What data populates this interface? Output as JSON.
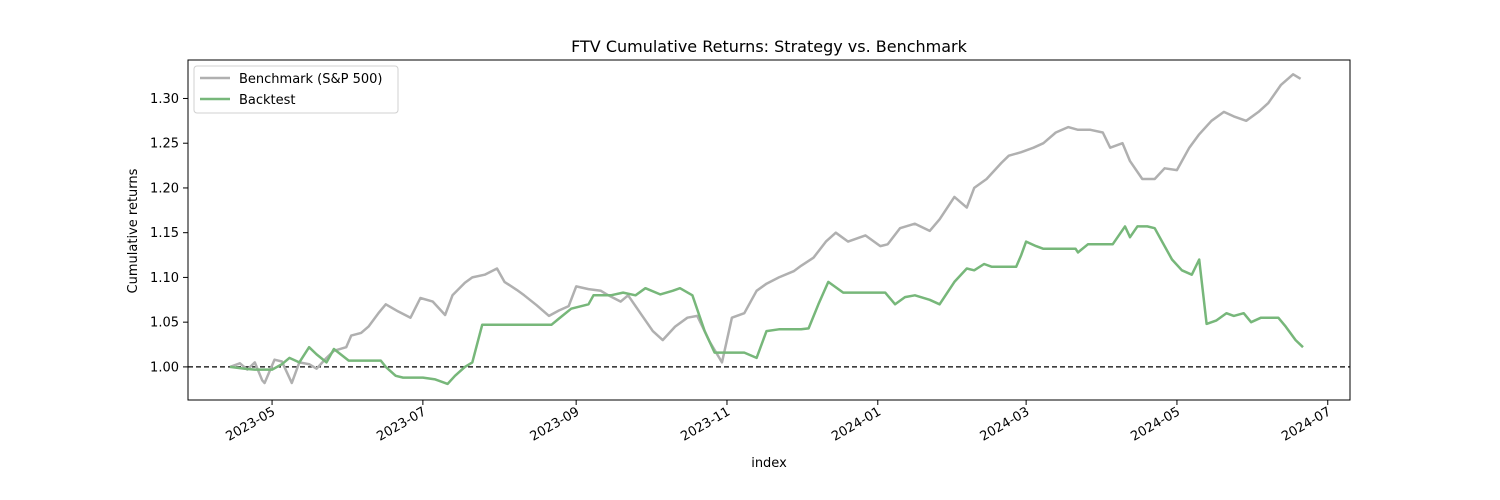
{
  "chart_data": {
    "type": "line",
    "title": "FTV Cumulative Returns: Strategy vs. Benchmark",
    "xlabel": "index",
    "ylabel": "Cumulative returns",
    "x_ticks": [
      "2023-05-01",
      "2023-07-01",
      "2023-09-01",
      "2023-11-01",
      "2024-01-01",
      "2024-03-01",
      "2024-05-01",
      "2024-07-01"
    ],
    "x_tick_labels": [
      "2023-05",
      "2023-07",
      "2023-09",
      "2023-11",
      "2024-01",
      "2024-03",
      "2024-05",
      "2024-07"
    ],
    "y_ticks": [
      1.0,
      1.05,
      1.1,
      1.15,
      1.2,
      1.25,
      1.3
    ],
    "y_tick_labels": [
      "1.00",
      "1.05",
      "1.10",
      "1.15",
      "1.20",
      "1.25",
      "1.30"
    ],
    "xlim": [
      "2023-03-28",
      "2024-07-10"
    ],
    "ylim": [
      0.963,
      1.343
    ],
    "legend_position": "upper-left",
    "reference_line": {
      "y": 1.0,
      "style": "dashed",
      "color": "#000000"
    },
    "series": [
      {
        "name": "Benchmark (S&P 500)",
        "color": "#b0b0b0",
        "points": [
          [
            "2023-04-14",
            1.0
          ],
          [
            "2023-04-18",
            1.004
          ],
          [
            "2023-04-21",
            0.997
          ],
          [
            "2023-04-24",
            1.005
          ],
          [
            "2023-04-27",
            0.985
          ],
          [
            "2023-04-28",
            0.982
          ],
          [
            "2023-05-02",
            1.008
          ],
          [
            "2023-05-05",
            1.006
          ],
          [
            "2023-05-09",
            0.982
          ],
          [
            "2023-05-12",
            1.005
          ],
          [
            "2023-05-16",
            1.003
          ],
          [
            "2023-05-19",
            0.998
          ],
          [
            "2023-05-23",
            1.01
          ],
          [
            "2023-05-26",
            1.018
          ],
          [
            "2023-05-31",
            1.022
          ],
          [
            "2023-06-02",
            1.035
          ],
          [
            "2023-06-06",
            1.038
          ],
          [
            "2023-06-09",
            1.045
          ],
          [
            "2023-06-13",
            1.06
          ],
          [
            "2023-06-16",
            1.07
          ],
          [
            "2023-06-21",
            1.062
          ],
          [
            "2023-06-26",
            1.055
          ],
          [
            "2023-06-30",
            1.077
          ],
          [
            "2023-07-05",
            1.073
          ],
          [
            "2023-07-10",
            1.058
          ],
          [
            "2023-07-13",
            1.08
          ],
          [
            "2023-07-18",
            1.094
          ],
          [
            "2023-07-21",
            1.1
          ],
          [
            "2023-07-26",
            1.103
          ],
          [
            "2023-07-31",
            1.11
          ],
          [
            "2023-08-03",
            1.095
          ],
          [
            "2023-08-08",
            1.086
          ],
          [
            "2023-08-11",
            1.08
          ],
          [
            "2023-08-16",
            1.069
          ],
          [
            "2023-08-21",
            1.057
          ],
          [
            "2023-08-25",
            1.063
          ],
          [
            "2023-08-29",
            1.068
          ],
          [
            "2023-09-01",
            1.09
          ],
          [
            "2023-09-06",
            1.087
          ],
          [
            "2023-09-11",
            1.085
          ],
          [
            "2023-09-14",
            1.08
          ],
          [
            "2023-09-19",
            1.073
          ],
          [
            "2023-09-22",
            1.08
          ],
          [
            "2023-09-27",
            1.06
          ],
          [
            "2023-10-02",
            1.04
          ],
          [
            "2023-10-06",
            1.03
          ],
          [
            "2023-10-11",
            1.045
          ],
          [
            "2023-10-16",
            1.055
          ],
          [
            "2023-10-20",
            1.057
          ],
          [
            "2023-10-25",
            1.028
          ],
          [
            "2023-10-30",
            1.005
          ],
          [
            "2023-11-03",
            1.055
          ],
          [
            "2023-11-08",
            1.06
          ],
          [
            "2023-11-13",
            1.085
          ],
          [
            "2023-11-17",
            1.093
          ],
          [
            "2023-11-22",
            1.1
          ],
          [
            "2023-11-28",
            1.107
          ],
          [
            "2023-12-01",
            1.113
          ],
          [
            "2023-12-06",
            1.122
          ],
          [
            "2023-12-11",
            1.14
          ],
          [
            "2023-12-15",
            1.15
          ],
          [
            "2023-12-20",
            1.14
          ],
          [
            "2023-12-27",
            1.147
          ],
          [
            "2024-01-02",
            1.135
          ],
          [
            "2024-01-05",
            1.137
          ],
          [
            "2024-01-10",
            1.155
          ],
          [
            "2024-01-16",
            1.16
          ],
          [
            "2024-01-22",
            1.152
          ],
          [
            "2024-01-26",
            1.165
          ],
          [
            "2024-02-01",
            1.19
          ],
          [
            "2024-02-06",
            1.178
          ],
          [
            "2024-02-09",
            1.2
          ],
          [
            "2024-02-14",
            1.21
          ],
          [
            "2024-02-20",
            1.228
          ],
          [
            "2024-02-23",
            1.236
          ],
          [
            "2024-02-28",
            1.24
          ],
          [
            "2024-03-04",
            1.245
          ],
          [
            "2024-03-08",
            1.25
          ],
          [
            "2024-03-13",
            1.262
          ],
          [
            "2024-03-18",
            1.268
          ],
          [
            "2024-03-22",
            1.265
          ],
          [
            "2024-03-27",
            1.265
          ],
          [
            "2024-04-01",
            1.262
          ],
          [
            "2024-04-04",
            1.245
          ],
          [
            "2024-04-09",
            1.25
          ],
          [
            "2024-04-12",
            1.23
          ],
          [
            "2024-04-17",
            1.21
          ],
          [
            "2024-04-22",
            1.21
          ],
          [
            "2024-04-26",
            1.222
          ],
          [
            "2024-05-01",
            1.22
          ],
          [
            "2024-05-06",
            1.245
          ],
          [
            "2024-05-10",
            1.26
          ],
          [
            "2024-05-15",
            1.275
          ],
          [
            "2024-05-20",
            1.285
          ],
          [
            "2024-05-24",
            1.28
          ],
          [
            "2024-05-29",
            1.275
          ],
          [
            "2024-06-03",
            1.285
          ],
          [
            "2024-06-07",
            1.295
          ],
          [
            "2024-06-12",
            1.315
          ],
          [
            "2024-06-17",
            1.327
          ],
          [
            "2024-06-20",
            1.322
          ]
        ]
      },
      {
        "name": "Backtest",
        "color": "#77b77a",
        "points": [
          [
            "2023-04-14",
            1.0
          ],
          [
            "2023-04-20",
            0.998
          ],
          [
            "2023-04-24",
            0.997
          ],
          [
            "2023-05-01",
            0.997
          ],
          [
            "2023-05-05",
            1.003
          ],
          [
            "2023-05-08",
            1.01
          ],
          [
            "2023-05-12",
            1.005
          ],
          [
            "2023-05-16",
            1.022
          ],
          [
            "2023-05-19",
            1.014
          ],
          [
            "2023-05-23",
            1.005
          ],
          [
            "2023-05-26",
            1.02
          ],
          [
            "2023-06-01",
            1.007
          ],
          [
            "2023-06-14",
            1.007
          ],
          [
            "2023-06-16",
            1.0
          ],
          [
            "2023-06-20",
            0.99
          ],
          [
            "2023-06-23",
            0.988
          ],
          [
            "2023-07-01",
            0.988
          ],
          [
            "2023-07-06",
            0.986
          ],
          [
            "2023-07-11",
            0.981
          ],
          [
            "2023-07-14",
            0.99
          ],
          [
            "2023-07-18",
            1.0
          ],
          [
            "2023-07-21",
            1.005
          ],
          [
            "2023-07-25",
            1.047
          ],
          [
            "2023-08-22",
            1.047
          ],
          [
            "2023-08-25",
            1.054
          ],
          [
            "2023-08-30",
            1.065
          ],
          [
            "2023-09-06",
            1.07
          ],
          [
            "2023-09-08",
            1.08
          ],
          [
            "2023-09-15",
            1.08
          ],
          [
            "2023-09-20",
            1.083
          ],
          [
            "2023-09-25",
            1.08
          ],
          [
            "2023-09-29",
            1.088
          ],
          [
            "2023-10-05",
            1.081
          ],
          [
            "2023-10-10",
            1.085
          ],
          [
            "2023-10-13",
            1.088
          ],
          [
            "2023-10-18",
            1.08
          ],
          [
            "2023-10-23",
            1.04
          ],
          [
            "2023-10-27",
            1.016
          ],
          [
            "2023-11-01",
            1.016
          ],
          [
            "2023-11-08",
            1.016
          ],
          [
            "2023-11-13",
            1.01
          ],
          [
            "2023-11-17",
            1.04
          ],
          [
            "2023-11-22",
            1.042
          ],
          [
            "2023-12-01",
            1.042
          ],
          [
            "2023-12-04",
            1.043
          ],
          [
            "2023-12-08",
            1.07
          ],
          [
            "2023-12-12",
            1.095
          ],
          [
            "2023-12-18",
            1.083
          ],
          [
            "2023-12-28",
            1.083
          ],
          [
            "2024-01-04",
            1.083
          ],
          [
            "2024-01-08",
            1.07
          ],
          [
            "2024-01-12",
            1.078
          ],
          [
            "2024-01-16",
            1.08
          ],
          [
            "2024-01-22",
            1.075
          ],
          [
            "2024-01-26",
            1.07
          ],
          [
            "2024-02-01",
            1.095
          ],
          [
            "2024-02-06",
            1.11
          ],
          [
            "2024-02-09",
            1.108
          ],
          [
            "2024-02-13",
            1.115
          ],
          [
            "2024-02-16",
            1.112
          ],
          [
            "2024-02-26",
            1.112
          ],
          [
            "2024-02-28",
            1.125
          ],
          [
            "2024-03-01",
            1.14
          ],
          [
            "2024-03-05",
            1.135
          ],
          [
            "2024-03-08",
            1.132
          ],
          [
            "2024-03-21",
            1.132
          ],
          [
            "2024-03-22",
            1.128
          ],
          [
            "2024-03-26",
            1.137
          ],
          [
            "2024-04-05",
            1.137
          ],
          [
            "2024-04-10",
            1.157
          ],
          [
            "2024-04-12",
            1.145
          ],
          [
            "2024-04-15",
            1.157
          ],
          [
            "2024-04-19",
            1.157
          ],
          [
            "2024-04-22",
            1.155
          ],
          [
            "2024-04-25",
            1.14
          ],
          [
            "2024-04-29",
            1.12
          ],
          [
            "2024-05-03",
            1.108
          ],
          [
            "2024-05-07",
            1.103
          ],
          [
            "2024-05-10",
            1.12
          ],
          [
            "2024-05-13",
            1.048
          ],
          [
            "2024-05-17",
            1.052
          ],
          [
            "2024-05-21",
            1.06
          ],
          [
            "2024-05-24",
            1.057
          ],
          [
            "2024-05-28",
            1.06
          ],
          [
            "2024-05-31",
            1.05
          ],
          [
            "2024-06-04",
            1.055
          ],
          [
            "2024-06-11",
            1.055
          ],
          [
            "2024-06-14",
            1.045
          ],
          [
            "2024-06-18",
            1.03
          ],
          [
            "2024-06-21",
            1.022
          ]
        ]
      }
    ]
  }
}
